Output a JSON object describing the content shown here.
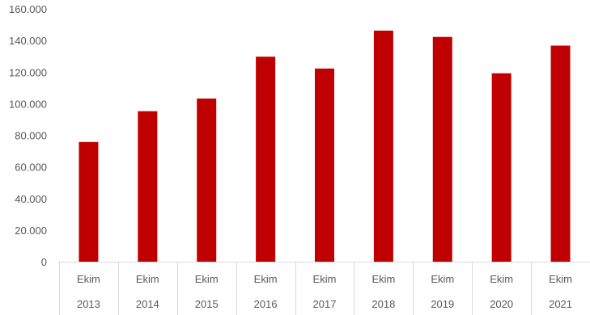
{
  "chart_data": {
    "type": "bar",
    "categories": [
      {
        "month": "Ekim",
        "year": "2013"
      },
      {
        "month": "Ekim",
        "year": "2014"
      },
      {
        "month": "Ekim",
        "year": "2015"
      },
      {
        "month": "Ekim",
        "year": "2016"
      },
      {
        "month": "Ekim",
        "year": "2017"
      },
      {
        "month": "Ekim",
        "year": "2018"
      },
      {
        "month": "Ekim",
        "year": "2019"
      },
      {
        "month": "Ekim",
        "year": "2020"
      },
      {
        "month": "Ekim",
        "year": "2021"
      }
    ],
    "values": [
      76000,
      95500,
      103500,
      130000,
      122500,
      146500,
      142500,
      119500,
      137000
    ],
    "ylim": [
      0,
      160000
    ],
    "yticks": [
      {
        "value": 0,
        "label": "0"
      },
      {
        "value": 20000,
        "label": "20.000"
      },
      {
        "value": 40000,
        "label": "40.000"
      },
      {
        "value": 60000,
        "label": "60.000"
      },
      {
        "value": 80000,
        "label": "80.000"
      },
      {
        "value": 100000,
        "label": "100.000"
      },
      {
        "value": 120000,
        "label": "120.000"
      },
      {
        "value": 140000,
        "label": "140.000"
      },
      {
        "value": 160000,
        "label": "160.000"
      }
    ],
    "grid": false,
    "bar_color": "#c00000",
    "axis_color": "#d9d9d9",
    "text_color": "#595959"
  }
}
